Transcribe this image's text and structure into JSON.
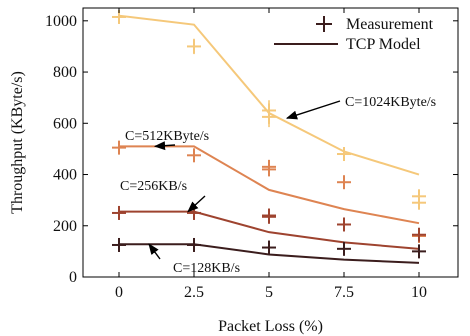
{
  "chart_data": {
    "type": "line",
    "xlabel": "Packet Loss (%)",
    "ylabel": "Throughput (KByte/s)",
    "x": [
      0,
      2.5,
      5,
      7.5,
      10
    ],
    "xlim": [
      -1.2,
      11.3
    ],
    "ylim": [
      0,
      1050
    ],
    "xticks": [
      "0",
      "2.5",
      "5",
      "7.5",
      "10"
    ],
    "yticks": [
      0,
      200,
      400,
      600,
      800,
      1000
    ],
    "grid": false,
    "legend": {
      "position": "top-right",
      "entries": [
        {
          "label": "Measurement",
          "marker": "plus",
          "color": "#3b1d1d"
        },
        {
          "label": "TCP Model",
          "marker": "line",
          "color": "#3b1d1d"
        }
      ]
    },
    "series": [
      {
        "color": "#f5c87a",
        "model": [
          1020,
          985,
          640,
          490,
          400
        ],
        "measurements": [
          [
            1015,
            900,
            625,
            480,
            315
          ],
          [
            null,
            null,
            650,
            null,
            290
          ]
        ],
        "errors": [
          [
            10,
            30,
            40,
            25,
            25
          ],
          [
            0,
            0,
            40,
            0,
            20
          ]
        ]
      },
      {
        "color": "#de8452",
        "model": [
          510,
          510,
          340,
          265,
          210
        ],
        "measurements": [
          [
            505,
            475,
            430,
            370,
            160
          ],
          [
            null,
            null,
            420,
            null,
            null
          ]
        ],
        "errors": [
          [
            12,
            12,
            10,
            12,
            10
          ],
          [
            0,
            0,
            10,
            0,
            0
          ]
        ]
      },
      {
        "color": "#9e432f",
        "model": [
          255,
          255,
          175,
          135,
          110
        ],
        "measurements": [
          [
            250,
            250,
            235,
            205,
            165
          ],
          [
            null,
            null,
            240,
            null,
            null
          ]
        ],
        "errors": [
          [
            10,
            8,
            12,
            12,
            12
          ],
          [
            0,
            0,
            10,
            0,
            0
          ]
        ]
      },
      {
        "color": "#3b1d1d",
        "model": [
          128,
          128,
          88,
          68,
          55
        ],
        "measurements": [
          [
            125,
            125,
            115,
            110,
            100
          ]
        ],
        "errors": [
          [
            8,
            8,
            8,
            10,
            10
          ]
        ]
      }
    ],
    "annotations": [
      {
        "text": "C=1024KByte/s",
        "point": [
          5.6,
          620
        ]
      },
      {
        "text": "C=512KByte/s",
        "point": [
          1.2,
          510
        ]
      },
      {
        "text": "C=256KB/s",
        "point": [
          2.3,
          255
        ]
      },
      {
        "text": "C=128KB/s",
        "point": [
          1.0,
          128
        ]
      }
    ]
  }
}
